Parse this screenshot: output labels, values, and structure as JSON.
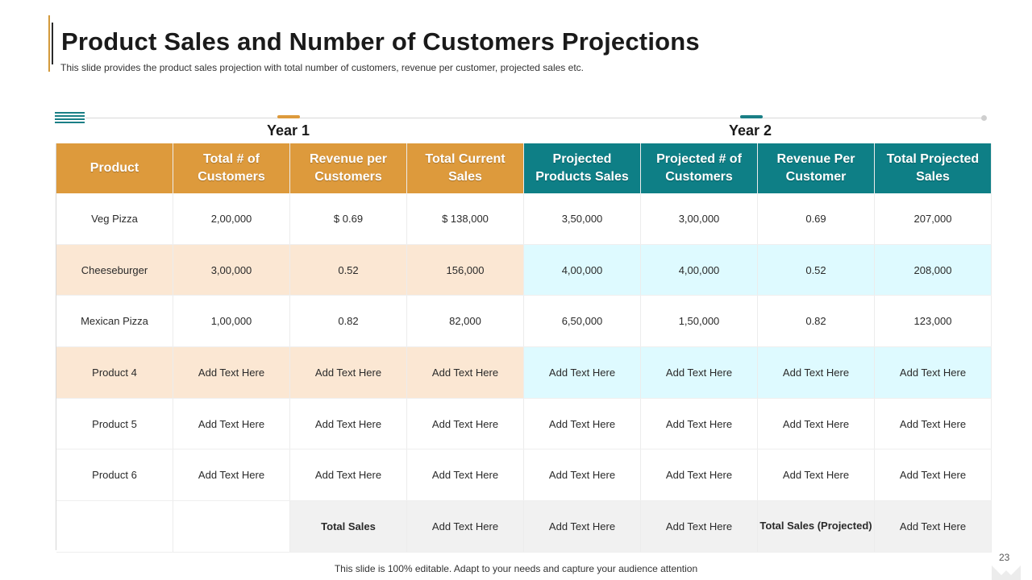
{
  "slide": {
    "title": "Product Sales and Number of Customers Projections",
    "subtitle": "This slide provides the product sales projection with total number of customers, revenue per customer, projected sales etc.",
    "year1_label": "Year 1",
    "year2_label": "Year 2",
    "footer": "This slide is 100% editable. Adapt to your needs and capture your audience attention",
    "page_number": "23"
  },
  "colors": {
    "year1_accent": "#dd9a3c",
    "year2_accent": "#0e7f86"
  },
  "table": {
    "headers": [
      "Product",
      "Total # of Customers",
      "Revenue per Customers",
      "Total Current Sales",
      "Projected Products Sales",
      "Projected # of Customers",
      "Revenue Per Customer",
      "Total Projected Sales"
    ],
    "rows": [
      [
        "Veg Pizza",
        "2,00,000",
        "$ 0.69",
        "$ 138,000",
        "3,50,000",
        "3,00,000",
        "0.69",
        "207,000"
      ],
      [
        "Cheeseburger",
        "3,00,000",
        "0.52",
        "156,000",
        "4,00,000",
        "4,00,000",
        "0.52",
        "208,000"
      ],
      [
        "Mexican Pizza",
        "1,00,000",
        "0.82",
        "82,000",
        "6,50,000",
        "1,50,000",
        "0.82",
        "123,000"
      ],
      [
        "Product 4",
        "Add Text Here",
        "Add Text Here",
        "Add Text Here",
        "Add Text Here",
        "Add Text Here",
        "Add Text Here",
        "Add Text Here"
      ],
      [
        "Product 5",
        "Add Text Here",
        "Add Text Here",
        "Add Text Here",
        "Add Text Here",
        "Add Text Here",
        "Add Text Here",
        "Add Text Here"
      ],
      [
        "Product 6",
        "Add Text Here",
        "Add Text Here",
        "Add Text Here",
        "Add Text Here",
        "Add Text Here",
        "Add Text Here",
        "Add Text Here"
      ]
    ],
    "totals": {
      "total_sales_label": "Total Sales",
      "total_current_sales": "Add Text Here",
      "projected_products_sales": "Add Text Here",
      "projected_customers": "Add Text Here",
      "total_projected_label": "Total Sales (Projected)",
      "total_projected_sales": "Add Text Here"
    }
  }
}
